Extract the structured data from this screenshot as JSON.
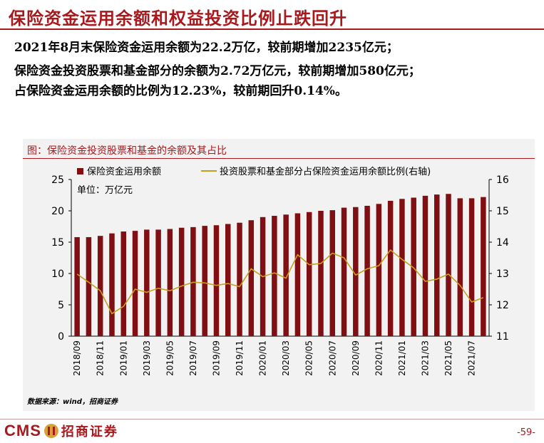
{
  "header": {
    "title": "保险资金运用余额和权益投资比例止跌回升"
  },
  "summary": {
    "line1": "2021年8月末保险资金运用余额为22.2万亿，较前期增加2235亿元；",
    "line2": "保险资金投资股票和基金部分的余额为2.72万亿元，较前期增加580亿元；",
    "line3": "占保险资金运用余额的比例为12.23%，较前期回升0.14%。"
  },
  "chart_title": "图：保险资金投资股票和基金的余额及其占比",
  "source": "数据来源：wind，招商证券",
  "footer": {
    "brand_en": "CMS",
    "brand_cn": "招商证券",
    "page": "-59-"
  },
  "colors": {
    "accent": "#a8191e",
    "bar": "#7f0f12",
    "line": "#c8a020",
    "panel": "#f2f2f2"
  },
  "chart_data": {
    "type": "bar+line",
    "unit_label": "单位：万亿元",
    "categories": [
      "2018/09",
      "2018/10",
      "2018/11",
      "2018/12",
      "2019/01",
      "2019/02",
      "2019/03",
      "2019/04",
      "2019/05",
      "2019/06",
      "2019/07",
      "2019/08",
      "2019/09",
      "2019/10",
      "2019/11",
      "2019/12",
      "2020/01",
      "2020/02",
      "2020/03",
      "2020/04",
      "2020/05",
      "2020/06",
      "2020/07",
      "2020/08",
      "2020/09",
      "2020/10",
      "2020/11",
      "2020/12",
      "2021/01",
      "2021/02",
      "2021/03",
      "2021/04",
      "2021/05",
      "2021/06",
      "2021/07",
      "2021/08"
    ],
    "x_tick_labels": [
      "2018/09",
      "2018/11",
      "2019/01",
      "2019/03",
      "2019/05",
      "2019/07",
      "2019/09",
      "2019/11",
      "2020/01",
      "2020/03",
      "2020/05",
      "2020/07",
      "2020/09",
      "2020/11",
      "2021/01",
      "2021/03",
      "2021/05",
      "2021/07"
    ],
    "series": [
      {
        "name": "保险资金运用余额",
        "axis": "left",
        "kind": "bar",
        "values": [
          15.8,
          15.8,
          16.0,
          16.4,
          16.7,
          16.8,
          17.0,
          17.0,
          17.1,
          17.3,
          17.4,
          17.6,
          17.7,
          17.9,
          18.1,
          18.5,
          19.0,
          19.2,
          19.4,
          19.6,
          19.8,
          20.0,
          20.1,
          20.5,
          20.6,
          20.8,
          21.1,
          21.6,
          21.9,
          22.1,
          22.4,
          22.6,
          22.7,
          22.0,
          22.0,
          22.2
        ]
      },
      {
        "name": "投资股票和基金部分占保险资金运用余额比例(右轴)",
        "axis": "right",
        "kind": "line",
        "values": [
          12.98,
          12.72,
          12.45,
          11.72,
          11.95,
          12.5,
          12.4,
          12.53,
          12.45,
          12.6,
          12.72,
          12.7,
          12.62,
          12.68,
          12.58,
          13.15,
          12.9,
          13.02,
          12.85,
          13.6,
          13.28,
          13.32,
          13.65,
          13.5,
          12.95,
          13.15,
          13.25,
          13.75,
          13.45,
          13.18,
          12.75,
          12.82,
          12.98,
          12.62,
          12.09,
          12.23
        ]
      }
    ],
    "ylim_left": [
      0,
      25
    ],
    "yticks_left": [
      0,
      5,
      10,
      15,
      20,
      25
    ],
    "ylim_right": [
      11,
      16
    ],
    "yticks_right": [
      11,
      12,
      13,
      14,
      15,
      16
    ],
    "legend_position": "top"
  }
}
